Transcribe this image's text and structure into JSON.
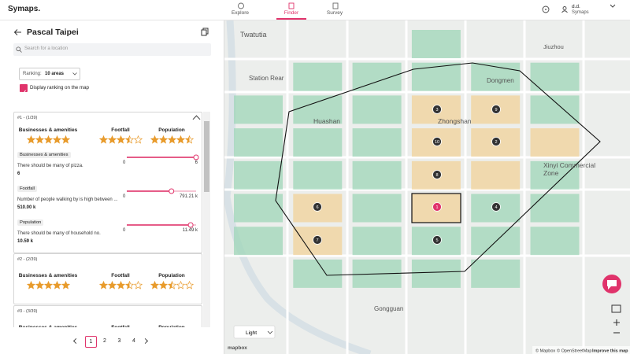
{
  "header": {
    "logo": "Symaps.",
    "tabs": [
      "Explore",
      "Finder",
      "Survey"
    ],
    "active_tab": 1,
    "user": {
      "name": "d.d.",
      "org": "Symaps"
    }
  },
  "sidebar": {
    "title": "Pascal Taipei",
    "search_placeholder": "Search for a location",
    "ranking_label": "Ranking:",
    "ranking_value": "10 areas",
    "checkbox_label": "Display ranking on the map",
    "checkbox_checked": true,
    "results": [
      {
        "label": "#1 - (1/39)",
        "scores": [
          {
            "name": "Businesses & amenities",
            "rating": 5
          },
          {
            "name": "Footfall",
            "rating": 3.5
          },
          {
            "name": "Population",
            "rating": 4.5
          }
        ],
        "criteria": [
          {
            "title": "Businesses & amenities",
            "description": "There should be many of pizza.",
            "value": 6,
            "min": 0,
            "max": 6
          },
          {
            "title": "Footfall",
            "description": "Number of people walking by is high between ...",
            "value": {
              "value": 510000,
              "label": "510.00 k"
            },
            "min": 0,
            "max": {
              "value": 791210,
              "label": "791.21 k"
            }
          },
          {
            "title": "Population",
            "description": "There should be many of household no.",
            "value": {
              "value": 10590,
              "label": "10.59 k"
            },
            "min": 0,
            "max": {
              "value": 11490,
              "label": "11.49 k"
            }
          }
        ]
      },
      {
        "label": "#2 - (2/39)",
        "scores": [
          {
            "name": "Businesses & amenities",
            "rating": 5
          },
          {
            "name": "Footfall",
            "rating": 3.5
          },
          {
            "name": "Population",
            "rating": 2.5
          }
        ]
      },
      {
        "label": "#3 - (3/39)",
        "scores": [
          {
            "name": "Businesses & amenities"
          },
          {
            "name": "Footfall"
          },
          {
            "name": "Population"
          }
        ]
      }
    ],
    "pagination": {
      "pages": [
        1,
        2,
        3,
        4
      ],
      "current": 1
    }
  },
  "map": {
    "markers": [
      1,
      2,
      3,
      4,
      5,
      6,
      7,
      8,
      9,
      10
    ],
    "place_labels": [
      "Twatutia",
      "Station Rear",
      "Huashan",
      "Zhongshan",
      "Dongmen",
      "Xinyi Commercial",
      "Zone",
      "Gongguan",
      "Jiuzhou"
    ],
    "style": "Light",
    "logo": "mapbox",
    "attribution": [
      "© Mapbox",
      "© OpenStreetMap",
      "Improve this map"
    ]
  }
}
